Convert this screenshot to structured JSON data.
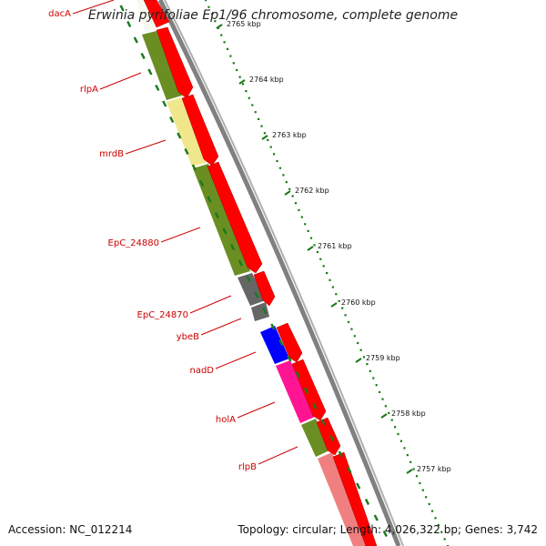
{
  "title": "Erwinia pyrifoliae Ep1/96 chromosome, complete genome",
  "footer": {
    "accession_label": "Accession: NC_012214",
    "topology": "Topology: circular;",
    "length": "Length: 4,026,322 bp;",
    "genes": "Genes: 3,742"
  },
  "colors": {
    "label_red": "#cc0000",
    "backbone": "#808080",
    "cds_red": "#ff0000",
    "olive": "#6b8e23",
    "pale_yellow": "#f0e68c",
    "gray": "#666666",
    "blue": "#0000ff",
    "magenta": "#ff1493",
    "salmon": "#f08080",
    "ruler_green": "#1a7a1a"
  },
  "ruler": {
    "ticks": [
      "2765 kbp",
      "2764 kbp",
      "2763 kbp",
      "2762 kbp",
      "2761 kbp",
      "2760 kbp",
      "2759 kbp",
      "2758 kbp",
      "2757 kbp"
    ]
  },
  "genes": [
    {
      "name": "dacA",
      "color": "white"
    },
    {
      "name": "rlpA",
      "color": "olive"
    },
    {
      "name": "mrdB",
      "color": "pale_yellow"
    },
    {
      "name": "EpC_24880",
      "color": "olive"
    },
    {
      "name": "EpC_24870",
      "color": "gray"
    },
    {
      "name": "ybeB",
      "color": "gray"
    },
    {
      "name": "nadD",
      "color": "blue"
    },
    {
      "name": "holA",
      "color": "magenta"
    },
    {
      "name": "rlpB",
      "color": "olive"
    },
    {
      "name": "",
      "color": "salmon"
    }
  ]
}
